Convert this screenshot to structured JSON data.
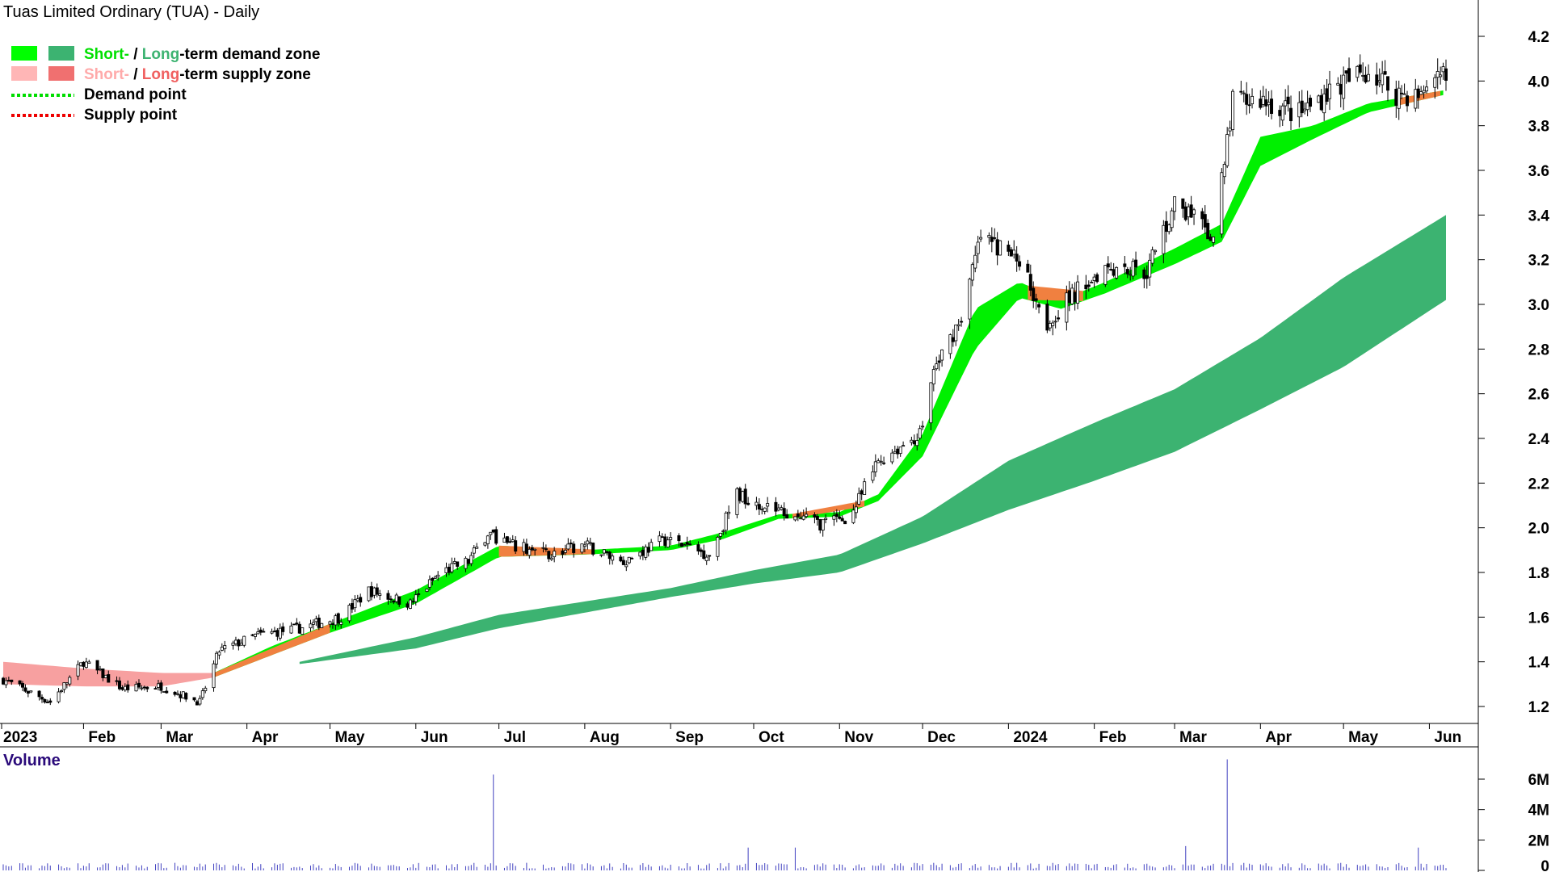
{
  "chart_data": {
    "type": "candlestick",
    "title": "Tuas Limited Ordinary (TUA) - Daily",
    "legend": [
      {
        "swatch_colors": [
          "#00ff00",
          "#3cb371"
        ],
        "parts": [
          {
            "text": "Short-",
            "color": "#00e000"
          },
          {
            "text": " / ",
            "color": "#000000"
          },
          {
            "text": "Long",
            "color": "#3cb371"
          },
          {
            "text": "-term demand zone",
            "color": "#000000"
          }
        ]
      },
      {
        "swatch_colors": [
          "#ffb6b6",
          "#f07070"
        ],
        "parts": [
          {
            "text": "Short-",
            "color": "#ffaaaa"
          },
          {
            "text": " / ",
            "color": "#000000"
          },
          {
            "text": "Long",
            "color": "#f06060"
          },
          {
            "text": "-term supply zone",
            "color": "#000000"
          }
        ]
      },
      {
        "line_color": "#00dd00",
        "text": "Demand point"
      },
      {
        "line_color": "#ee0000",
        "text": "Supply point"
      }
    ],
    "price_axis": {
      "ticks": [
        "1.2",
        "1.4",
        "1.6",
        "1.8",
        "2.0",
        "2.2",
        "2.4",
        "2.6",
        "2.8",
        "3.0",
        "3.2",
        "3.4",
        "3.6",
        "3.8",
        "4.0",
        "4.2"
      ],
      "range": [
        1.1,
        4.3
      ]
    },
    "time_axis": {
      "labels": [
        "2023",
        "Feb",
        "Mar",
        "Apr",
        "May",
        "Jun",
        "Jul",
        "Aug",
        "Sep",
        "Oct",
        "Nov",
        "Dec",
        "2024",
        "Feb",
        "Mar",
        "Apr",
        "May",
        "Jun"
      ],
      "range": [
        "2023-01-03",
        "2024-06-07"
      ]
    },
    "price_keypoints": [
      [
        "2023-01-03",
        1.32
      ],
      [
        "2023-01-20",
        1.22
      ],
      [
        "2023-02-01",
        1.4
      ],
      [
        "2023-02-15",
        1.28
      ],
      [
        "2023-03-01",
        1.29
      ],
      [
        "2023-03-15",
        1.22
      ],
      [
        "2023-03-22",
        1.45
      ],
      [
        "2023-04-05",
        1.52
      ],
      [
        "2023-04-20",
        1.55
      ],
      [
        "2023-05-05",
        1.6
      ],
      [
        "2023-05-15",
        1.72
      ],
      [
        "2023-05-30",
        1.66
      ],
      [
        "2023-06-10",
        1.8
      ],
      [
        "2023-06-20",
        1.85
      ],
      [
        "2023-06-27",
        1.98
      ],
      [
        "2023-07-05",
        1.92
      ],
      [
        "2023-07-20",
        1.88
      ],
      [
        "2023-08-01",
        1.92
      ],
      [
        "2023-08-15",
        1.85
      ],
      [
        "2023-08-30",
        1.95
      ],
      [
        "2023-09-15",
        1.88
      ],
      [
        "2023-09-25",
        2.15
      ],
      [
        "2023-10-10",
        2.08
      ],
      [
        "2023-10-25",
        2.02
      ],
      [
        "2023-11-05",
        2.05
      ],
      [
        "2023-11-15",
        2.3
      ],
      [
        "2023-11-30",
        2.42
      ],
      [
        "2023-12-05",
        2.7
      ],
      [
        "2023-12-15",
        2.95
      ],
      [
        "2023-12-22",
        3.3
      ],
      [
        "2024-01-05",
        3.2
      ],
      [
        "2024-01-15",
        2.92
      ],
      [
        "2024-01-25",
        3.05
      ],
      [
        "2024-02-05",
        3.18
      ],
      [
        "2024-02-20",
        3.15
      ],
      [
        "2024-03-01",
        3.45
      ],
      [
        "2024-03-15",
        3.3
      ],
      [
        "2024-03-22",
        3.9
      ],
      [
        "2024-04-01",
        3.92
      ],
      [
        "2024-04-15",
        3.85
      ],
      [
        "2024-04-25",
        3.95
      ],
      [
        "2024-05-10",
        4.05
      ],
      [
        "2024-05-20",
        3.95
      ],
      [
        "2024-06-01",
        3.92
      ],
      [
        "2024-06-07",
        4.06
      ]
    ],
    "short_zone_keypoints": [
      [
        "2023-03-20",
        1.33,
        1.35
      ],
      [
        "2023-04-10",
        1.43,
        1.47
      ],
      [
        "2023-05-01",
        1.53,
        1.57
      ],
      [
        "2023-06-01",
        1.66,
        1.72
      ],
      [
        "2023-07-01",
        1.87,
        1.92
      ],
      [
        "2023-08-01",
        1.88,
        1.9
      ],
      [
        "2023-09-01",
        1.9,
        1.92
      ],
      [
        "2023-09-20",
        1.95,
        1.98
      ],
      [
        "2023-10-10",
        2.04,
        2.06
      ],
      [
        "2023-11-01",
        2.05,
        2.07
      ],
      [
        "2023-11-15",
        2.12,
        2.15
      ],
      [
        "2023-12-01",
        2.32,
        2.42
      ],
      [
        "2023-12-20",
        2.8,
        2.98
      ],
      [
        "2024-01-05",
        3.03,
        3.1
      ],
      [
        "2024-01-20",
        2.98,
        3.02
      ],
      [
        "2024-02-05",
        3.05,
        3.1
      ],
      [
        "2024-03-01",
        3.18,
        3.25
      ],
      [
        "2024-03-18",
        3.28,
        3.36
      ],
      [
        "2024-04-01",
        3.62,
        3.75
      ],
      [
        "2024-04-20",
        3.74,
        3.8
      ],
      [
        "2024-05-10",
        3.86,
        3.9
      ],
      [
        "2024-06-07",
        3.94,
        3.96
      ]
    ],
    "long_zone_keypoints": [
      [
        "2023-04-20",
        1.39,
        1.4
      ],
      [
        "2023-06-01",
        1.46,
        1.51
      ],
      [
        "2023-07-01",
        1.55,
        1.61
      ],
      [
        "2023-08-01",
        1.62,
        1.67
      ],
      [
        "2023-09-01",
        1.69,
        1.73
      ],
      [
        "2023-10-01",
        1.75,
        1.81
      ],
      [
        "2023-11-01",
        1.8,
        1.88
      ],
      [
        "2023-12-01",
        1.93,
        2.05
      ],
      [
        "2024-01-01",
        2.08,
        2.3
      ],
      [
        "2024-02-01",
        2.21,
        2.47
      ],
      [
        "2024-03-01",
        2.34,
        2.62
      ],
      [
        "2024-04-01",
        2.53,
        2.85
      ],
      [
        "2024-05-01",
        2.72,
        3.12
      ],
      [
        "2024-06-07",
        3.02,
        3.4
      ]
    ],
    "supply_zone_keypoints": [
      [
        "2023-01-03",
        1.3,
        1.4
      ],
      [
        "2023-02-01",
        1.29,
        1.37
      ],
      [
        "2023-03-01",
        1.29,
        1.35
      ],
      [
        "2023-03-20",
        1.33,
        1.35
      ]
    ],
    "volume": {
      "title": "Volume",
      "ticks": [
        "0",
        "2M",
        "4M",
        "6M"
      ],
      "range": [
        0,
        7200000
      ],
      "spikes": [
        [
          "2023-06-29",
          6300000
        ],
        [
          "2024-03-20",
          7300000
        ],
        [
          "2023-10-16",
          1500000
        ],
        [
          "2024-03-05",
          1600000
        ],
        [
          "2024-04-28",
          1500000
        ],
        [
          "2023-09-29",
          1500000
        ],
        [
          "2024-05-28",
          1500000
        ]
      ]
    }
  }
}
